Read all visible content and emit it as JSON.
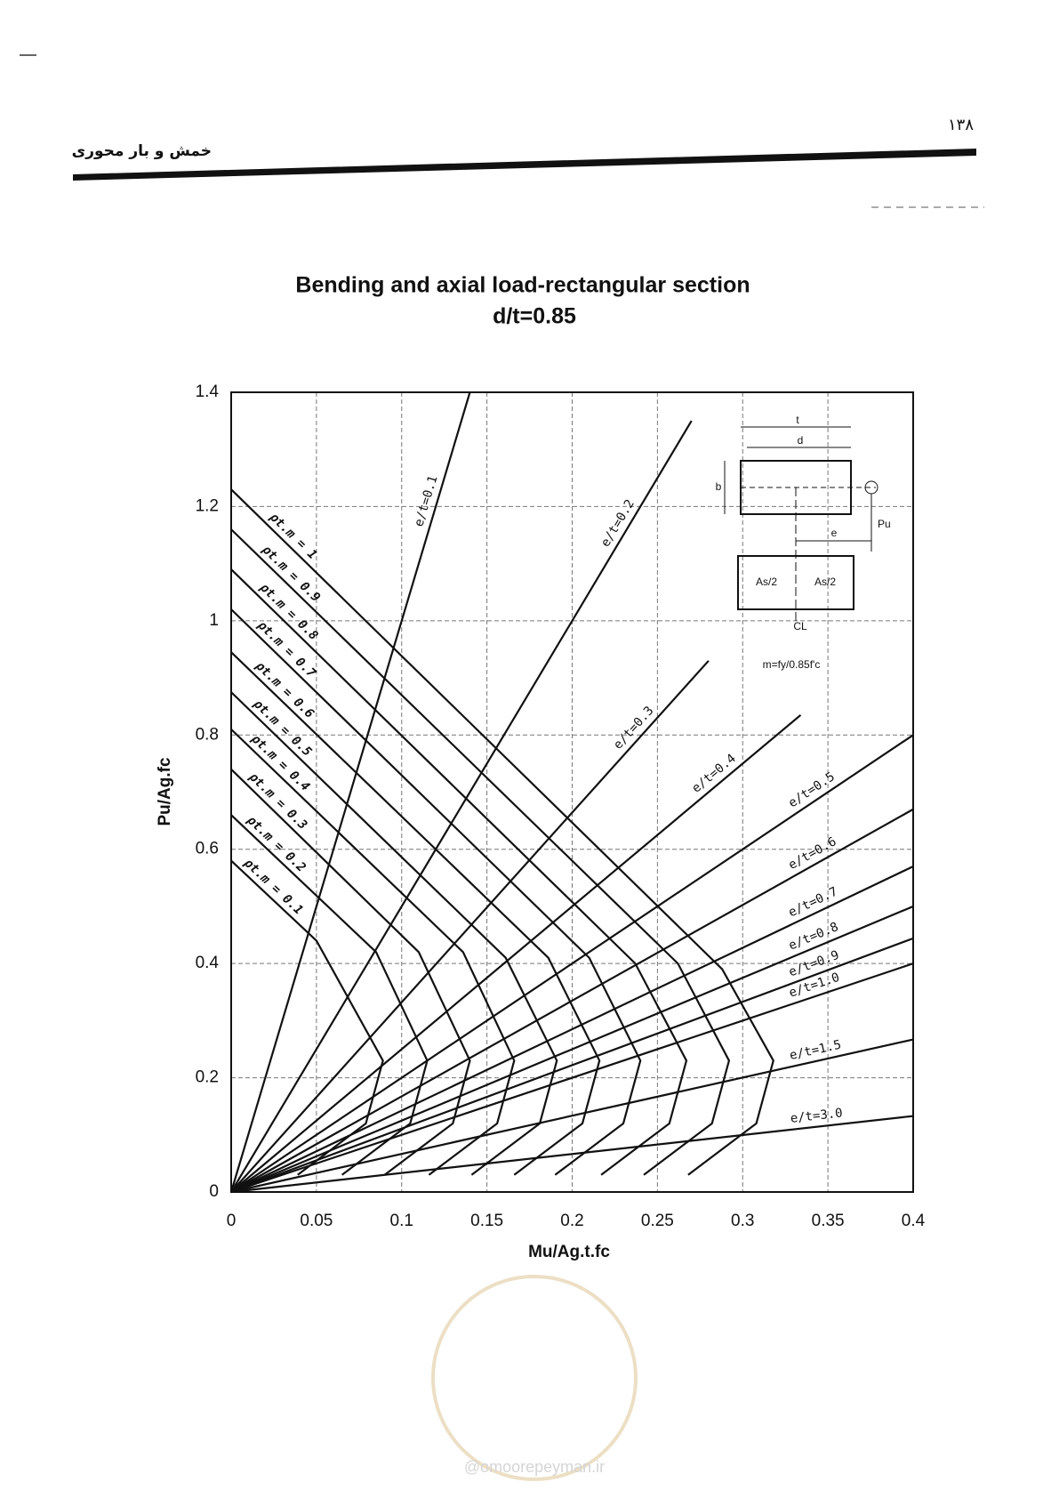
{
  "page": {
    "number": "۱۳۸",
    "header": "خمش و بار محوری",
    "watermark": "@omoorepeyman.ir"
  },
  "chart_data": {
    "type": "line",
    "title": "Bending and axial load-rectangular section",
    "subtitle": "d/t=0.85",
    "x_label": "Mu/Ag.t.fc",
    "y_label": "Pu/Ag.fc",
    "xlim": [
      0,
      0.4
    ],
    "ylim": [
      0,
      1.4
    ],
    "xticks": [
      0,
      0.05,
      0.1,
      0.15,
      0.2,
      0.25,
      0.3,
      0.35,
      0.4
    ],
    "yticks": [
      0,
      0.2,
      0.4,
      0.6,
      0.8,
      1,
      1.2,
      1.4
    ],
    "grid": true,
    "color": "#111111",
    "eccentricity_lines": [
      {
        "name": "e/t=0.1",
        "x": [
          0,
          0.14
        ],
        "y": [
          0,
          1.4
        ]
      },
      {
        "name": "e/t=0.2",
        "x": [
          0,
          0.27
        ],
        "y": [
          0,
          1.35
        ]
      },
      {
        "name": "e/t=0.3",
        "x": [
          0,
          0.28
        ],
        "y": [
          0,
          0.93
        ]
      },
      {
        "name": "e/t=0.4",
        "x": [
          0,
          0.334
        ],
        "y": [
          0,
          0.835
        ]
      },
      {
        "name": "e/t=0.5",
        "x": [
          0,
          0.4
        ],
        "y": [
          0,
          0.8
        ]
      },
      {
        "name": "e/t=0.6",
        "x": [
          0,
          0.4
        ],
        "y": [
          0,
          0.67
        ]
      },
      {
        "name": "e/t=0.7",
        "x": [
          0,
          0.4
        ],
        "y": [
          0,
          0.57
        ]
      },
      {
        "name": "e/t=0.8",
        "x": [
          0,
          0.4
        ],
        "y": [
          0,
          0.5
        ]
      },
      {
        "name": "e/t=0.9",
        "x": [
          0,
          0.4
        ],
        "y": [
          0,
          0.444
        ]
      },
      {
        "name": "e/t=1.0",
        "x": [
          0,
          0.4
        ],
        "y": [
          0,
          0.4
        ]
      },
      {
        "name": "e/t=1.5",
        "x": [
          0,
          0.4
        ],
        "y": [
          0,
          0.267
        ]
      },
      {
        "name": "e/t=3.0",
        "x": [
          0,
          0.4
        ],
        "y": [
          0,
          0.133
        ]
      }
    ],
    "steel_curves": [
      {
        "name": "ρt.m = 0.1",
        "x": [
          0,
          0.05,
          0.089,
          0.079,
          0.039
        ],
        "y": [
          0.58,
          0.44,
          0.23,
          0.12,
          0.03
        ]
      },
      {
        "name": "ρt.m = 0.2",
        "x": [
          0,
          0.085,
          0.115,
          0.105,
          0.065
        ],
        "y": [
          0.66,
          0.42,
          0.23,
          0.12,
          0.03
        ]
      },
      {
        "name": "ρt.m = 0.3",
        "x": [
          0,
          0.11,
          0.14,
          0.13,
          0.09
        ],
        "y": [
          0.74,
          0.42,
          0.23,
          0.12,
          0.03
        ]
      },
      {
        "name": "ρt.m = 0.4",
        "x": [
          0,
          0.136,
          0.166,
          0.156,
          0.116
        ],
        "y": [
          0.81,
          0.42,
          0.23,
          0.12,
          0.03
        ]
      },
      {
        "name": "ρt.m = 0.5",
        "x": [
          0,
          0.161,
          0.191,
          0.181,
          0.141
        ],
        "y": [
          0.875,
          0.41,
          0.23,
          0.12,
          0.03
        ]
      },
      {
        "name": "ρt.m = 0.6",
        "x": [
          0,
          0.186,
          0.216,
          0.206,
          0.166
        ],
        "y": [
          0.945,
          0.41,
          0.23,
          0.12,
          0.03
        ]
      },
      {
        "name": "ρt.m = 0.7",
        "x": [
          0,
          0.21,
          0.24,
          0.23,
          0.19
        ],
        "y": [
          1.02,
          0.41,
          0.23,
          0.12,
          0.03
        ]
      },
      {
        "name": "ρt.m = 0.8",
        "x": [
          0,
          0.237,
          0.267,
          0.257,
          0.217
        ],
        "y": [
          1.09,
          0.4,
          0.23,
          0.12,
          0.03
        ]
      },
      {
        "name": "ρt.m = 0.9",
        "x": [
          0,
          0.262,
          0.292,
          0.282,
          0.242
        ],
        "y": [
          1.16,
          0.4,
          0.23,
          0.12,
          0.03
        ]
      },
      {
        "name": "ρt.m = 1",
        "x": [
          0,
          0.288,
          0.318,
          0.308,
          0.268
        ],
        "y": [
          1.23,
          0.39,
          0.23,
          0.12,
          0.03
        ]
      }
    ],
    "inset": {
      "t": "t",
      "d": "d",
      "b": "b",
      "e": "e",
      "pu": "Pu",
      "as_left": "As/2",
      "as_right": "As/2",
      "cl": "CL",
      "m": "m=fy/0.85f'c"
    }
  }
}
